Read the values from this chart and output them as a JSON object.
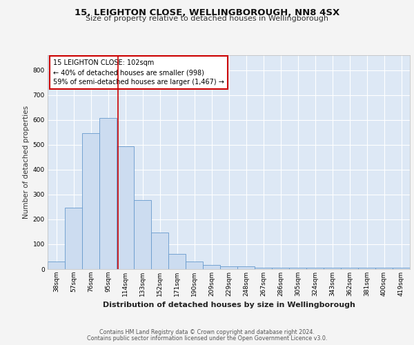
{
  "title_line1": "15, LEIGHTON CLOSE, WELLINGBOROUGH, NN8 4SX",
  "title_line2": "Size of property relative to detached houses in Wellingborough",
  "xlabel": "Distribution of detached houses by size in Wellingborough",
  "ylabel": "Number of detached properties",
  "footer_line1": "Contains HM Land Registry data © Crown copyright and database right 2024.",
  "footer_line2": "Contains public sector information licensed under the Open Government Licence v3.0.",
  "bin_labels": [
    "38sqm",
    "57sqm",
    "76sqm",
    "95sqm",
    "114sqm",
    "133sqm",
    "152sqm",
    "171sqm",
    "190sqm",
    "209sqm",
    "229sqm",
    "248sqm",
    "267sqm",
    "286sqm",
    "305sqm",
    "324sqm",
    "343sqm",
    "362sqm",
    "381sqm",
    "400sqm",
    "419sqm"
  ],
  "bar_heights": [
    30,
    247,
    547,
    607,
    493,
    277,
    147,
    62,
    30,
    18,
    12,
    12,
    5,
    5,
    5,
    5,
    5,
    5,
    5,
    5,
    5
  ],
  "bar_color": "#ccdcf0",
  "bar_edge_color": "#6699cc",
  "fig_bg_color": "#f4f4f4",
  "plot_bg_color": "#dde8f5",
  "grid_color": "#ffffff",
  "red_line_x": 3.58,
  "annotation_text": "15 LEIGHTON CLOSE: 102sqm\n← 40% of detached houses are smaller (998)\n59% of semi-detached houses are larger (1,467) →",
  "annotation_box_color": "#ffffff",
  "annotation_box_edge": "#cc0000",
  "ylim": [
    0,
    860
  ],
  "yticks": [
    0,
    100,
    200,
    300,
    400,
    500,
    600,
    700,
    800
  ],
  "title1_fontsize": 9.5,
  "title2_fontsize": 8.0,
  "ylabel_fontsize": 7.5,
  "xlabel_fontsize": 8.0,
  "tick_fontsize": 6.5,
  "footer_fontsize": 5.8,
  "annot_fontsize": 7.0
}
